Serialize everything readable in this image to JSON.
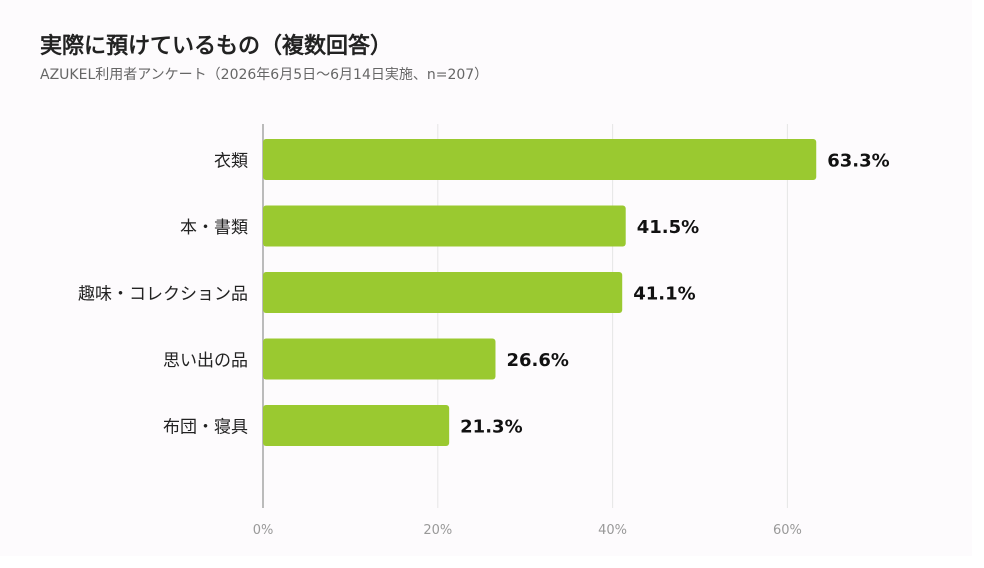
{
  "chart_data": {
    "type": "bar",
    "orientation": "horizontal",
    "title": "実際に預けているもの（複数回答）",
    "subtitle": "AZUKEL利用者アンケート（2026年6月5日〜6月14日実施、n=207）",
    "xlabel": "",
    "ylabel": "",
    "categories": [
      "衣類",
      "本・書類",
      "趣味・コレクション品",
      "思い出の品",
      "布団・寝具"
    ],
    "values": [
      63.3,
      41.5,
      41.1,
      26.6,
      21.3
    ],
    "value_labels": [
      "63.3%",
      "41.5%",
      "41.1%",
      "26.6%",
      "21.3%"
    ],
    "xlim": [
      0,
      80
    ],
    "x_ticks": [
      0,
      20,
      40,
      60
    ],
    "x_tick_labels": [
      "0%",
      "20%",
      "40%",
      "60%"
    ],
    "grid": true,
    "legend": "none",
    "bar_color": "#9ac930"
  }
}
